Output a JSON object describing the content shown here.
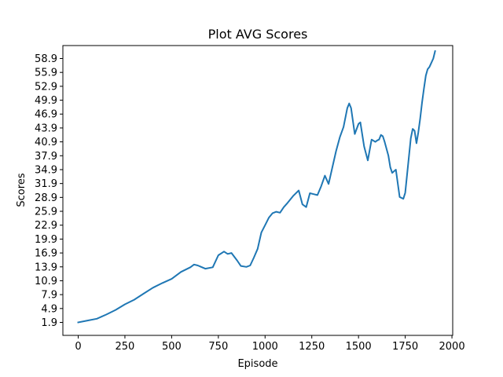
{
  "chart_data": {
    "type": "line",
    "title": "Plot AVG Scores",
    "xlabel": "Episode",
    "ylabel": "Scores",
    "xlim": [
      -82,
      2004
    ],
    "ylim": [
      -0.9,
      61.7
    ],
    "xticks": [
      0,
      250,
      500,
      750,
      1000,
      1250,
      1500,
      1750,
      2000
    ],
    "xtick_labels": [
      "0",
      "250",
      "500",
      "750",
      "1000",
      "1250",
      "1500",
      "1750",
      "2000"
    ],
    "yticks": [
      1.9,
      4.9,
      7.9,
      10.9,
      13.9,
      16.9,
      19.9,
      22.9,
      25.9,
      28.9,
      31.9,
      34.9,
      37.9,
      40.9,
      43.9,
      46.9,
      49.9,
      52.9,
      55.9,
      58.9
    ],
    "ytick_labels": [
      "1.9",
      "4.9",
      "7.9",
      "10.9",
      "13.9",
      "16.9",
      "19.9",
      "22.9",
      "25.9",
      "28.9",
      "31.9",
      "34.9",
      "37.9",
      "40.9",
      "43.9",
      "46.9",
      "49.9",
      "52.9",
      "55.9",
      "58.9"
    ],
    "grid": false,
    "line_color": "#1f77b4",
    "series": [
      {
        "x": [
          0,
          50,
          100,
          150,
          200,
          250,
          300,
          350,
          400,
          450,
          500,
          550,
          600,
          620,
          640,
          680,
          720,
          750,
          780,
          800,
          820,
          850,
          870,
          900,
          920,
          940,
          960,
          980,
          1000,
          1020,
          1040,
          1060,
          1080,
          1100,
          1120,
          1150,
          1180,
          1200,
          1220,
          1240,
          1260,
          1280,
          1300,
          1320,
          1340,
          1360,
          1380,
          1400,
          1420,
          1440,
          1450,
          1460,
          1480,
          1500,
          1510,
          1530,
          1550,
          1570,
          1590,
          1600,
          1610,
          1620,
          1630,
          1640,
          1660,
          1670,
          1680,
          1700,
          1720,
          1740,
          1750,
          1760,
          1780,
          1790,
          1800,
          1810,
          1820,
          1830,
          1840,
          1850,
          1860,
          1870,
          1880,
          1890,
          1900,
          1910
        ],
        "values": [
          1.9,
          2.3,
          2.7,
          3.6,
          4.6,
          5.8,
          6.8,
          8.1,
          9.4,
          10.4,
          11.3,
          12.8,
          13.8,
          14.4,
          14.2,
          13.5,
          13.8,
          16.4,
          17.2,
          16.7,
          16.9,
          15.3,
          14.1,
          13.9,
          14.2,
          15.9,
          17.8,
          21.3,
          22.9,
          24.5,
          25.5,
          25.8,
          25.6,
          26.8,
          27.7,
          29.2,
          30.4,
          27.4,
          26.8,
          29.8,
          29.6,
          29.4,
          31.3,
          33.6,
          31.8,
          35.4,
          38.9,
          41.9,
          44.1,
          48.2,
          49.2,
          48.2,
          42.6,
          44.8,
          45.1,
          39.9,
          36.9,
          41.4,
          40.9,
          41.2,
          41.4,
          42.4,
          42.1,
          40.9,
          37.9,
          35.4,
          34.2,
          34.9,
          29.0,
          28.6,
          29.9,
          33.9,
          41.7,
          43.7,
          43.3,
          40.6,
          42.9,
          45.9,
          49.4,
          52.4,
          55.2,
          56.6,
          57.1,
          58.0,
          58.9,
          60.5
        ]
      }
    ]
  }
}
